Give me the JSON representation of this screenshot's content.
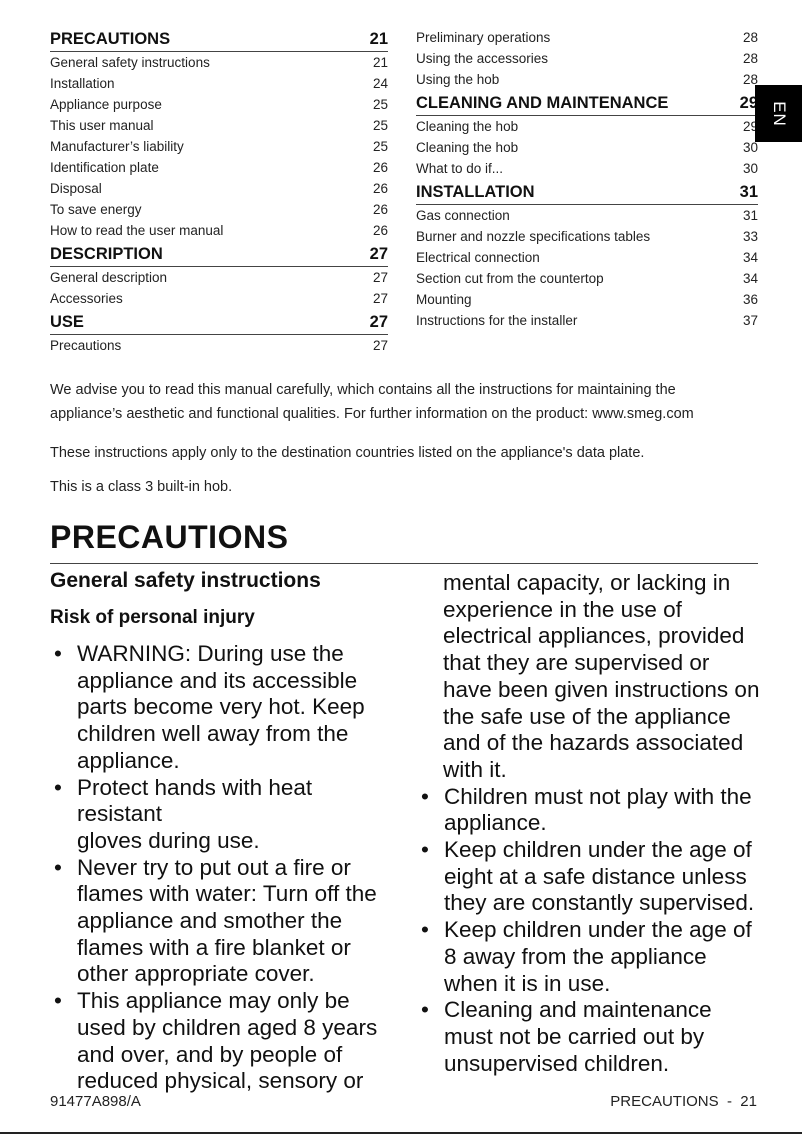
{
  "toc_left": [
    {
      "type": "head",
      "label": "PRECAUTIONS",
      "page": "21"
    },
    {
      "type": "item",
      "label": "General safety instructions",
      "page": "21"
    },
    {
      "type": "item",
      "label": "Installation",
      "page": "24"
    },
    {
      "type": "item",
      "label": "Appliance purpose",
      "page": "25"
    },
    {
      "type": "item",
      "label": "This user manual",
      "page": "25"
    },
    {
      "type": "item",
      "label": "Manufacturer’s liability",
      "page": "25"
    },
    {
      "type": "item",
      "label": "Identification plate",
      "page": "26"
    },
    {
      "type": "item",
      "label": "Disposal",
      "page": "26"
    },
    {
      "type": "item",
      "label": "To save energy",
      "page": "26"
    },
    {
      "type": "item",
      "label": "How to read the user manual",
      "page": "26"
    },
    {
      "type": "head",
      "label": "DESCRIPTION",
      "page": "27"
    },
    {
      "type": "item",
      "label": "General description",
      "page": "27"
    },
    {
      "type": "item",
      "label": "Accessories",
      "page": "27"
    },
    {
      "type": "head",
      "label": "USE",
      "page": "27"
    },
    {
      "type": "item",
      "label": "Precautions",
      "page": "27"
    }
  ],
  "toc_right": [
    {
      "type": "item",
      "label": "Preliminary operations",
      "page": "28"
    },
    {
      "type": "item",
      "label": "Using the accessories",
      "page": "28"
    },
    {
      "type": "item",
      "label": "Using the hob",
      "page": "28"
    },
    {
      "type": "head",
      "label": "CLEANING AND MAINTENANCE",
      "page": "29"
    },
    {
      "type": "item",
      "label": "Cleaning the hob",
      "page": "29"
    },
    {
      "type": "item",
      "label": "Cleaning the hob",
      "page": "30"
    },
    {
      "type": "item",
      "label": "What to do if...",
      "page": "30"
    },
    {
      "type": "head",
      "label": "INSTALLATION",
      "page": "31"
    },
    {
      "type": "item",
      "label": "Gas connection",
      "page": "31"
    },
    {
      "type": "item",
      "label": "Burner and nozzle specifications tables",
      "page": "33"
    },
    {
      "type": "item",
      "label": "Electrical connection",
      "page": "34"
    },
    {
      "type": "item",
      "label": "Section cut from the countertop",
      "page": "34"
    },
    {
      "type": "item",
      "label": "Mounting",
      "page": "36"
    },
    {
      "type": "item",
      "label": "Instructions for the installer",
      "page": "37"
    }
  ],
  "language_tab": "EN",
  "intro": {
    "p1": "We advise you to read this manual carefully, which contains all the instructions for maintaining the\nappliance’s aesthetic and functional qualities. For further information on the product: www.smeg.com",
    "p2": "These instructions apply only to the destination countries listed on the appliance's data plate.",
    "p3": "This is a class 3 built-in hob."
  },
  "section": {
    "title": "PRECAUTIONS",
    "subtitle": "General safety instructions",
    "subsubtitle": "Risk of personal injury",
    "bullet_glyph": "•",
    "left_bullets": [
      "WARNING: During use the\nappliance and its accessible\nparts become very hot. Keep\nchildren well away from the\nappliance.",
      "Protect hands with heat resistant\ngloves during use.",
      "Never try to put out a fire or\nflames with water: Turn off the\nappliance and smother the\nflames with a fire blanket or\nother appropriate cover.",
      "This appliance may only be\nused by children aged 8 years\nand over, and by people of\nreduced physical, sensory or"
    ],
    "right_continuation": "mental capacity, or lacking in\nexperience in the use of\nelectrical appliances, provided\nthat they are supervised or\nhave been given instructions on\nthe safe use of the appliance\nand of the hazards associated\nwith it.",
    "right_bullets": [
      "Children must not play with the\nappliance.",
      "Keep children under the age of\neight at a safe distance unless\nthey are constantly supervised.",
      "Keep children under the age of\n8 away from the appliance\nwhen it is in use.",
      "Cleaning and maintenance\nmust not be carried out by\nunsupervised children."
    ]
  },
  "footer": {
    "code": "91477A898/A",
    "section_page": "PRECAUTIONS  -  21"
  }
}
